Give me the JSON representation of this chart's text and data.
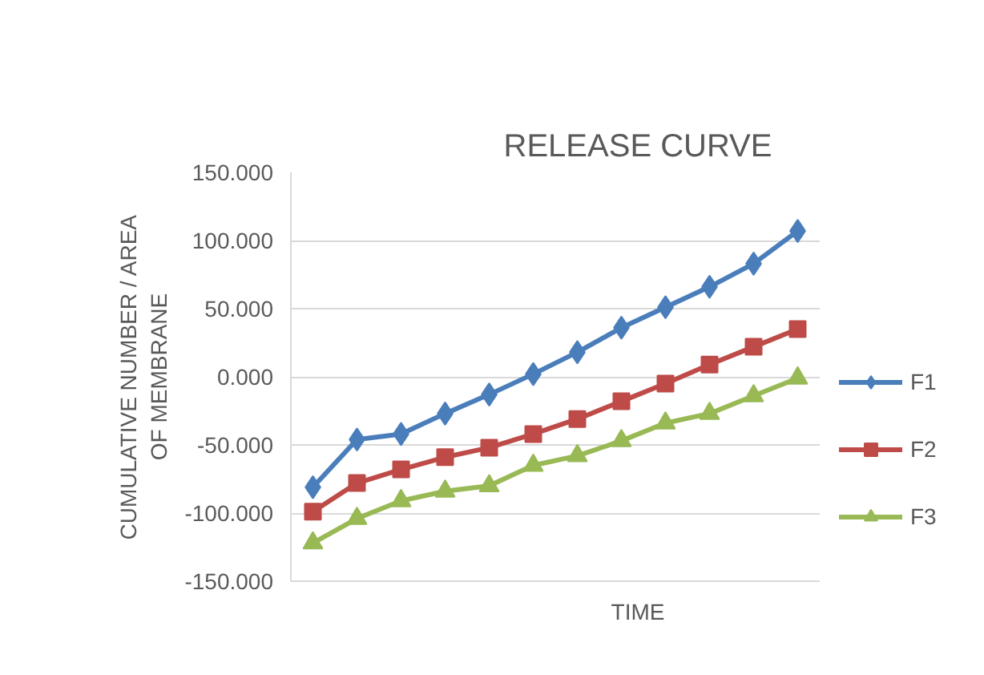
{
  "chart_data": {
    "type": "line",
    "title": "RELEASE CURVE",
    "xlabel": "TIME",
    "ylabel": "CUMULATIVE NUMBER / AREA\nOF MEMBRANE",
    "categories": [
      null,
      null,
      null,
      null,
      null,
      null,
      null,
      null,
      null,
      null,
      null,
      null
    ],
    "ylim": [
      -150,
      150
    ],
    "yticks": [
      {
        "value": -150,
        "label": "-150.000"
      },
      {
        "value": -100,
        "label": "-100.000"
      },
      {
        "value": -50,
        "label": "-50.000"
      },
      {
        "value": 0,
        "label": "0.000"
      },
      {
        "value": 50,
        "label": "50.000"
      },
      {
        "value": 100,
        "label": "100.000"
      },
      {
        "value": 150,
        "label": "150.000"
      }
    ],
    "grid": "y",
    "legend": "right",
    "series": [
      {
        "name": "F1",
        "color": "#4a7ebb",
        "marker": "diamond",
        "values": [
          -81,
          -46,
          -42,
          -27,
          -13,
          2,
          18,
          36,
          51,
          66,
          83,
          107
        ]
      },
      {
        "name": "F2",
        "color": "#be4b48",
        "marker": "square",
        "values": [
          -99,
          -78,
          -68,
          -59,
          -52,
          -42,
          -31,
          -18,
          -5,
          9,
          22,
          35
        ]
      },
      {
        "name": "F3",
        "color": "#98b954",
        "marker": "triangle",
        "values": [
          -122,
          -104,
          -91,
          -84,
          -80,
          -65,
          -58,
          -47,
          -34,
          -27,
          -14,
          -1
        ]
      }
    ]
  }
}
